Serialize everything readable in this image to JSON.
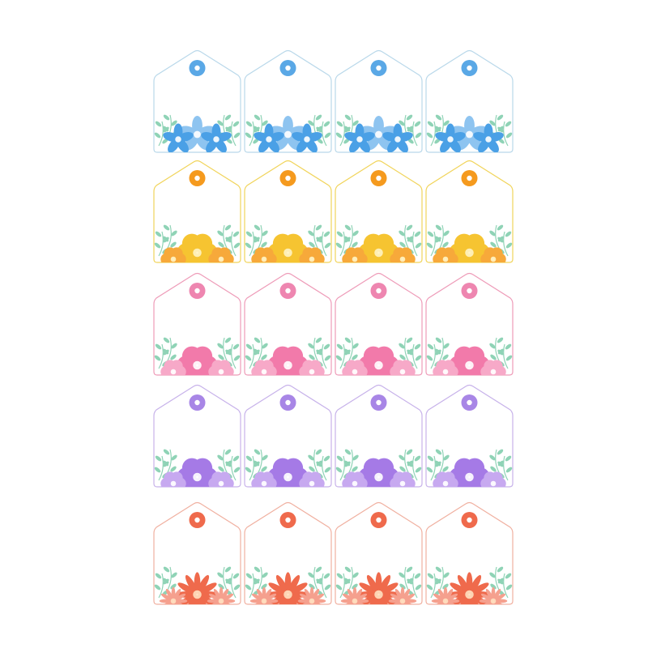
{
  "sheet": {
    "columns": 4,
    "rows": [
      {
        "theme": "blue-flowers",
        "border": "#b9d8ea",
        "hole": "#5aa8e6",
        "flower": "#4aa0e6",
        "flower_light": "#8ec4f0",
        "center": "#ffffff",
        "leaf": "#8fd3b6",
        "style": "star"
      },
      {
        "theme": "yellow-flowers",
        "border": "#f1d45a",
        "hole": "#f59a1e",
        "flower": "#f6c431",
        "flower_light": "#f7a93a",
        "center": "#fff4c4",
        "leaf": "#8fd3b6",
        "style": "round"
      },
      {
        "theme": "pink-flowers",
        "border": "#ee9bb8",
        "hole": "#ee86b0",
        "flower": "#f27aaa",
        "flower_light": "#f7a9c8",
        "center": "#ffffff",
        "leaf": "#8fd3b6",
        "style": "round"
      },
      {
        "theme": "purple-flowers",
        "border": "#c7b2ea",
        "hole": "#a886e6",
        "flower": "#a57ae6",
        "flower_light": "#c7a9f0",
        "center": "#ffffff",
        "leaf": "#8fd3b6",
        "style": "round"
      },
      {
        "theme": "coral-flowers",
        "border": "#f0b0a0",
        "hole": "#ef6a4c",
        "flower": "#ef6a4c",
        "flower_light": "#f5a08e",
        "center": "#ffe0c0",
        "leaf": "#8fd3b6",
        "style": "daisy"
      }
    ]
  }
}
